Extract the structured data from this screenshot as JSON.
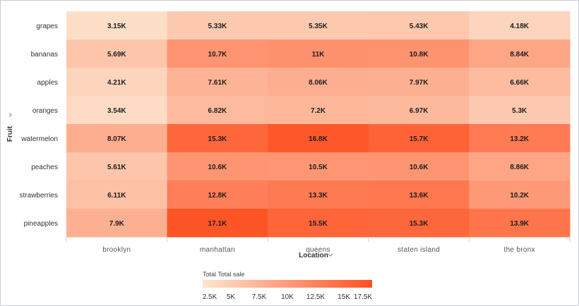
{
  "chart_data": {
    "type": "heatmap",
    "xlabel": "Location",
    "ylabel": "Fruit",
    "columns": [
      "brooklyn",
      "manhattan",
      "queens",
      "staten island",
      "the bronx"
    ],
    "rows": [
      "grapes",
      "bananas",
      "apples",
      "oranges",
      "watermelon",
      "peaches",
      "strawberries",
      "pineapples"
    ],
    "values": [
      [
        3150,
        5330,
        5350,
        5430,
        4180
      ],
      [
        5690,
        10700,
        11000,
        10800,
        8840
      ],
      [
        4210,
        7610,
        8060,
        7970,
        6660
      ],
      [
        3540,
        6820,
        7200,
        6970,
        5300
      ],
      [
        8070,
        15300,
        16800,
        15700,
        13200
      ],
      [
        5610,
        10600,
        10500,
        10600,
        8860
      ],
      [
        6110,
        12800,
        13300,
        13600,
        10200
      ],
      [
        7900,
        17100,
        15500,
        15300,
        13900
      ]
    ],
    "labels": [
      [
        "3.15K",
        "5.33K",
        "5.35K",
        "5.43K",
        "4.18K"
      ],
      [
        "5.69K",
        "10.7K",
        "11K",
        "10.8K",
        "8.84K"
      ],
      [
        "4.21K",
        "7.61K",
        "8.06K",
        "7.97K",
        "6.66K"
      ],
      [
        "3.54K",
        "6.82K",
        "7.2K",
        "6.97K",
        "5.3K"
      ],
      [
        "8.07K",
        "15.3K",
        "16.8K",
        "15.7K",
        "13.2K"
      ],
      [
        "5.61K",
        "10.6K",
        "10.5K",
        "10.6K",
        "8.86K"
      ],
      [
        "6.11K",
        "12.8K",
        "13.3K",
        "13.6K",
        "10.2K"
      ],
      [
        "7.9K",
        "17.1K",
        "15.5K",
        "15.3K",
        "13.9K"
      ]
    ],
    "color_scale": {
      "min": 2500,
      "max": 17500,
      "low_color": "#fde5d0",
      "high_color": "#fe5122"
    },
    "legend": {
      "title": "Total Total sale",
      "ticks": [
        2500,
        5000,
        7500,
        10000,
        12500,
        15000,
        17500
      ],
      "tick_labels": [
        "2.5K",
        "5K",
        "7.5K",
        "10K",
        "12.5K",
        "15K",
        "17.5K"
      ],
      "placement": "bottom"
    }
  }
}
